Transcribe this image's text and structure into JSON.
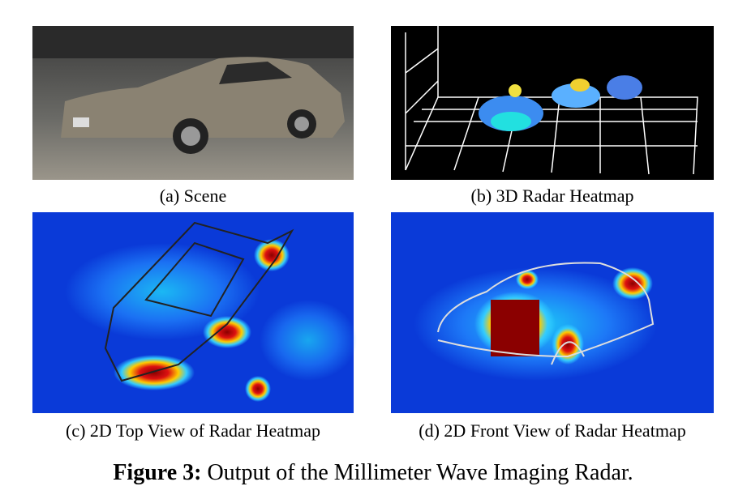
{
  "panels": [
    {
      "caption": "(a) Scene"
    },
    {
      "caption": "(b) 3D Radar Heatmap"
    },
    {
      "caption": "(c) 2D Top View of Radar Heatmap"
    },
    {
      "caption": "(d) 2D Front View of Radar Heatmap"
    }
  ],
  "figure": {
    "label": "Figure 3:",
    "caption": "Output of the Millimeter Wave Imaging Radar."
  }
}
